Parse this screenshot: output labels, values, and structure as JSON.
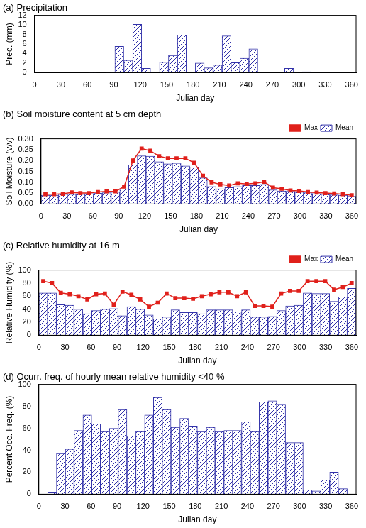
{
  "chart_data": [
    {
      "type": "bar",
      "title": "(a) Precipitation",
      "x_label": "Julian day",
      "y_label": "Prec. (mm)",
      "x": [
        5.1,
        15.2,
        25.3,
        35.5,
        45.6,
        55.8,
        65.9,
        76.0,
        86.2,
        96.3,
        106.5,
        116.6,
        126.7,
        136.9,
        147.0,
        157.1,
        167.3,
        177.4,
        187.6,
        197.7,
        207.8,
        218.0,
        228.1,
        238.3,
        248.4,
        258.5,
        268.7,
        278.8,
        289.0,
        299.1,
        309.2,
        319.4,
        329.5,
        339.7,
        349.8,
        359.9
      ],
      "values": [
        0,
        0,
        0,
        0,
        0,
        0,
        0.1,
        0,
        0.1,
        5.5,
        2.6,
        10.1,
        0.9,
        0,
        2.2,
        3.6,
        7.9,
        0,
        2.0,
        1.0,
        1.6,
        7.7,
        2.1,
        3.0,
        5.0,
        0,
        0,
        0,
        0.9,
        0,
        0.2,
        0,
        0,
        0,
        0,
        0
      ],
      "color": "#3333aa",
      "xlim": [
        0,
        365
      ],
      "xticks": [
        0,
        30,
        60,
        90,
        120,
        150,
        180,
        210,
        240,
        270,
        300,
        330,
        360
      ],
      "ylim": [
        0,
        12
      ],
      "yticks": [
        0,
        2,
        4,
        6,
        8,
        10,
        12
      ],
      "grid": false
    },
    {
      "type": "bar",
      "title": "(b) Soil moisture content at 5 cm depth",
      "x_label": "Julian day",
      "y_label": "Soil Moisture (v/v)",
      "x": [
        5.1,
        15.2,
        25.3,
        35.5,
        45.6,
        55.8,
        65.9,
        76.0,
        86.2,
        96.3,
        106.5,
        116.6,
        126.7,
        136.9,
        147.0,
        157.1,
        167.3,
        177.4,
        187.6,
        197.7,
        207.8,
        218.0,
        228.1,
        238.3,
        248.4,
        258.5,
        268.7,
        278.8,
        289.0,
        299.1,
        309.2,
        319.4,
        329.5,
        339.7,
        349.8,
        359.9
      ],
      "series": [
        {
          "name": "Mean",
          "type": "bar",
          "color": "#3333aa",
          "values": [
            0.04,
            0.04,
            0.045,
            0.045,
            0.045,
            0.048,
            0.05,
            0.052,
            0.055,
            0.07,
            0.18,
            0.222,
            0.22,
            0.195,
            0.185,
            0.188,
            0.175,
            0.17,
            0.12,
            0.08,
            0.07,
            0.075,
            0.08,
            0.085,
            0.085,
            0.09,
            0.065,
            0.06,
            0.058,
            0.055,
            0.052,
            0.048,
            0.045,
            0.042,
            0.04,
            0.035
          ]
        },
        {
          "name": "Max",
          "type": "line",
          "color": "#e0201b",
          "marker": "square",
          "line_style": "solid",
          "values": [
            0.045,
            0.045,
            0.047,
            0.053,
            0.05,
            0.05,
            0.055,
            0.058,
            0.058,
            0.08,
            0.2,
            0.255,
            0.245,
            0.22,
            0.21,
            0.21,
            0.21,
            0.19,
            0.13,
            0.1,
            0.09,
            0.085,
            0.095,
            0.092,
            0.095,
            0.102,
            0.075,
            0.07,
            0.062,
            0.06,
            0.055,
            0.052,
            0.05,
            0.048,
            0.045,
            0.04
          ]
        }
      ],
      "xlim": [
        0,
        365
      ],
      "xticks": [
        0,
        30,
        60,
        90,
        120,
        150,
        180,
        210,
        240,
        270,
        300,
        330,
        360
      ],
      "ylim": [
        0,
        0.3
      ],
      "yticks": [
        {
          "value": 0,
          "label": "0.00"
        },
        {
          "value": 0.05,
          "label": "0.05"
        },
        {
          "value": 0.1,
          "label": "0.10"
        },
        {
          "value": 0.15,
          "label": "0.15"
        },
        {
          "value": 0.2,
          "label": "0.20"
        },
        {
          "value": 0.25,
          "label": "0.25"
        },
        {
          "value": 0.3,
          "label": "0.30"
        }
      ],
      "grid": false,
      "legend": "upper right"
    },
    {
      "type": "bar",
      "title": "(c) Relative humidity at 16 m",
      "x_label": "Julian day",
      "y_label": "Relative Humidity (%)",
      "x": [
        5.1,
        15.2,
        25.3,
        35.5,
        45.6,
        55.8,
        65.9,
        76.0,
        86.2,
        96.3,
        106.5,
        116.6,
        126.7,
        136.9,
        147.0,
        157.1,
        167.3,
        177.4,
        187.6,
        197.7,
        207.8,
        218.0,
        228.1,
        238.3,
        248.4,
        258.5,
        268.7,
        278.8,
        289.0,
        299.1,
        309.2,
        319.4,
        329.5,
        339.7,
        349.8,
        359.9
      ],
      "series": [
        {
          "name": "Mean",
          "type": "bar",
          "color": "#3333aa",
          "values": [
            65,
            65,
            47,
            46,
            40,
            33,
            38,
            40,
            41,
            30,
            44,
            40,
            31,
            25,
            28,
            39,
            35,
            35,
            33,
            39,
            39,
            39,
            36,
            39,
            28,
            28,
            29,
            38,
            45,
            46,
            65,
            64,
            64,
            52,
            59,
            72
          ]
        },
        {
          "name": "Max",
          "type": "line",
          "color": "#e0201b",
          "marker": "square",
          "line_style": "solid",
          "values": [
            83,
            80,
            65,
            63,
            60,
            55,
            63,
            64,
            47,
            67,
            62,
            55,
            44,
            50,
            64,
            57,
            57,
            56,
            60,
            63,
            66,
            66,
            60,
            66,
            45,
            45,
            44,
            64,
            68,
            68,
            83,
            83,
            83,
            70,
            74,
            80
          ]
        }
      ],
      "xlim": [
        0,
        365
      ],
      "xticks": [
        0,
        30,
        60,
        90,
        120,
        150,
        180,
        210,
        240,
        270,
        300,
        330,
        360
      ],
      "ylim": [
        0,
        100
      ],
      "yticks": [
        0,
        20,
        40,
        60,
        80,
        100
      ],
      "grid": false,
      "legend": "upper right"
    },
    {
      "type": "bar",
      "title": "(d) Ocurr. freq. of hourly mean relative humidity <40 %",
      "x_label": "Julian day",
      "y_label": "Percent Occ. Freq. (%)",
      "x": [
        5.1,
        15.2,
        25.3,
        35.5,
        45.6,
        55.8,
        65.9,
        76.0,
        86.2,
        96.3,
        106.5,
        116.6,
        126.7,
        136.9,
        147.0,
        157.1,
        167.3,
        177.4,
        187.6,
        197.7,
        207.8,
        218.0,
        228.1,
        238.3,
        248.4,
        258.5,
        268.7,
        278.8,
        289.0,
        299.1,
        309.2,
        319.4,
        329.5,
        339.7,
        349.8,
        359.9
      ],
      "values": [
        0,
        2,
        37,
        41,
        58,
        72,
        64,
        57,
        60,
        77,
        53,
        57,
        72,
        88,
        77,
        61,
        69,
        62,
        57,
        61,
        57,
        58,
        58,
        66,
        57,
        84,
        85,
        82,
        47,
        47,
        4,
        3,
        13,
        20,
        5,
        0
      ],
      "color": "#3333aa",
      "xlim": [
        0,
        365
      ],
      "xticks": [
        0,
        30,
        60,
        90,
        120,
        150,
        180,
        210,
        240,
        270,
        300,
        330,
        360
      ],
      "ylim": [
        0,
        100
      ],
      "yticks": [
        0,
        20,
        40,
        60,
        80,
        100
      ],
      "grid": false
    }
  ]
}
